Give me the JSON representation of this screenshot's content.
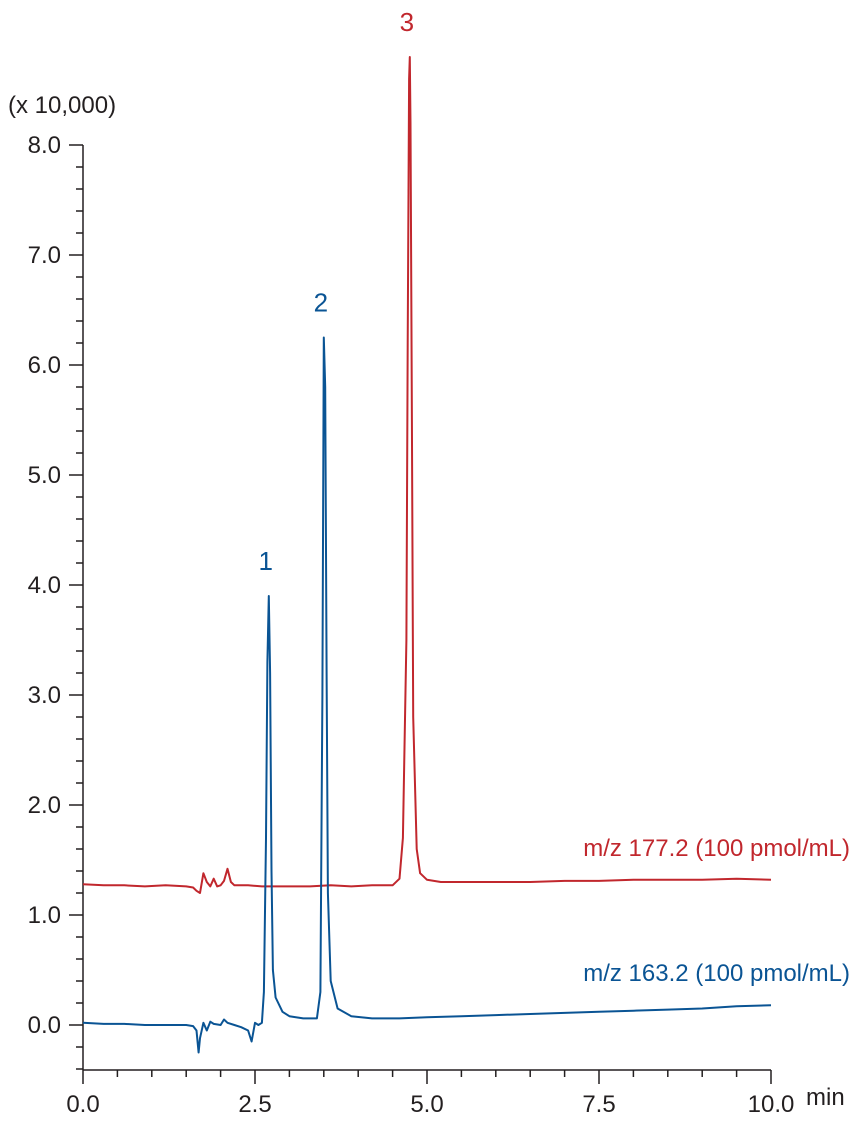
{
  "chart_data": {
    "type": "line",
    "xunit": "min",
    "yunit": "(x 10,000)",
    "xlim": [
      0.0,
      10.0
    ],
    "ylim": [
      -0.4,
      8.0
    ],
    "x_ticks": [
      "0.0",
      "2.5",
      "5.0",
      "7.5",
      "10.0"
    ],
    "y_ticks": [
      "0.0",
      "1.0",
      "2.0",
      "3.0",
      "4.0",
      "5.0",
      "6.0",
      "7.0",
      "8.0"
    ],
    "grid": false,
    "series": [
      {
        "name": "m/z 177.2 (100 pmol/mL)",
        "color": "#c1272d",
        "x": [
          0.0,
          0.3,
          0.6,
          0.9,
          1.2,
          1.5,
          1.6,
          1.65,
          1.7,
          1.75,
          1.8,
          1.85,
          1.9,
          1.95,
          2.0,
          2.05,
          2.1,
          2.15,
          2.2,
          2.4,
          2.6,
          2.8,
          3.0,
          3.3,
          3.6,
          3.9,
          4.2,
          4.5,
          4.6,
          4.65,
          4.7,
          4.72,
          4.74,
          4.75,
          4.76,
          4.78,
          4.8,
          4.85,
          4.9,
          5.0,
          5.2,
          5.5,
          6.0,
          6.5,
          7.0,
          7.5,
          8.0,
          8.5,
          9.0,
          9.5,
          10.0
        ],
        "y": [
          1.28,
          1.27,
          1.27,
          1.26,
          1.27,
          1.26,
          1.25,
          1.22,
          1.2,
          1.38,
          1.3,
          1.26,
          1.33,
          1.26,
          1.27,
          1.31,
          1.42,
          1.3,
          1.27,
          1.27,
          1.26,
          1.26,
          1.26,
          1.26,
          1.27,
          1.26,
          1.27,
          1.27,
          1.33,
          1.7,
          3.5,
          6.2,
          8.6,
          8.8,
          8.2,
          5.5,
          2.8,
          1.6,
          1.38,
          1.32,
          1.3,
          1.3,
          1.3,
          1.3,
          1.31,
          1.31,
          1.32,
          1.32,
          1.32,
          1.33,
          1.32
        ]
      },
      {
        "name": "m/z 163.2 (100 pmol/mL)",
        "color": "#0a5494",
        "x": [
          0.0,
          0.3,
          0.6,
          0.9,
          1.2,
          1.5,
          1.6,
          1.65,
          1.68,
          1.7,
          1.75,
          1.8,
          1.85,
          1.9,
          2.0,
          2.05,
          2.1,
          2.2,
          2.3,
          2.4,
          2.45,
          2.5,
          2.55,
          2.6,
          2.63,
          2.66,
          2.68,
          2.7,
          2.72,
          2.74,
          2.76,
          2.8,
          2.9,
          3.0,
          3.2,
          3.4,
          3.45,
          3.48,
          3.5,
          3.52,
          3.54,
          3.56,
          3.6,
          3.7,
          3.9,
          4.2,
          4.6,
          5.0,
          5.5,
          6.0,
          6.5,
          7.0,
          7.5,
          8.0,
          8.5,
          9.0,
          9.5,
          10.0
        ],
        "y": [
          0.02,
          0.01,
          0.01,
          0.0,
          0.0,
          0.0,
          -0.01,
          -0.05,
          -0.25,
          -0.12,
          0.02,
          -0.05,
          0.03,
          0.01,
          0.0,
          0.05,
          0.02,
          0.0,
          -0.02,
          -0.05,
          -0.15,
          0.02,
          0.0,
          0.02,
          0.3,
          1.7,
          3.3,
          3.9,
          3.2,
          1.4,
          0.5,
          0.25,
          0.12,
          0.08,
          0.06,
          0.06,
          0.3,
          3.0,
          6.25,
          5.8,
          3.2,
          1.2,
          0.4,
          0.15,
          0.08,
          0.06,
          0.06,
          0.07,
          0.08,
          0.09,
          0.1,
          0.11,
          0.12,
          0.13,
          0.14,
          0.15,
          0.17,
          0.18
        ]
      }
    ],
    "peak_labels": [
      {
        "text": "1",
        "x": 2.7,
        "y": 3.9,
        "series": 1
      },
      {
        "text": "2",
        "x": 3.5,
        "y": 6.25,
        "series": 1
      },
      {
        "text": "3",
        "x": 4.75,
        "y": 8.8,
        "series": 0
      }
    ]
  }
}
